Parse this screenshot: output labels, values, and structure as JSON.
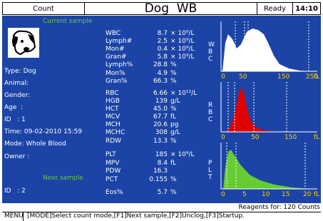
{
  "header": {
    "mode": "Count",
    "title": "Dog  WB",
    "status": "Ready",
    "time": "14:10"
  },
  "current_sample": {
    "heading": "Current sample",
    "fields": [
      "Type: Dog",
      "Animal:",
      "Gender:",
      "Age  :",
      "ID   : 1",
      "Time: 09-02-2010 15:59",
      "Mode: Whole Blood",
      "Owner :"
    ]
  },
  "next_sample": {
    "heading": "Next sample",
    "id": "ID   : 2"
  },
  "parameters": [
    {
      "name": "WBC",
      "value": "8.7",
      "unit": "× 10⁹/L"
    },
    {
      "name": "Lymph#",
      "value": "2.5",
      "unit": "× 10⁹/L"
    },
    {
      "name": "Mon#",
      "value": "0.4",
      "unit": "× 10⁹/L"
    },
    {
      "name": "Gran#",
      "value": "5.8",
      "unit": "× 10⁹/L"
    },
    {
      "name": "Lymph%",
      "value": "28.8",
      "unit": "%"
    },
    {
      "name": "Mon%",
      "value": "4.9",
      "unit": "%"
    },
    {
      "name": "Gran%",
      "value": "66.3",
      "unit": "%"
    },
    {
      "name": "RBC",
      "value": "6.66",
      "unit": "× 10¹²/L"
    },
    {
      "name": "HGB",
      "value": "139",
      "unit": "g/L"
    },
    {
      "name": "HCT",
      "value": "45.0",
      "unit": "%"
    },
    {
      "name": "MCV",
      "value": "67.7",
      "unit": "fL"
    },
    {
      "name": "MCH",
      "value": "20.6",
      "unit": "pg"
    },
    {
      "name": "MCHC",
      "value": "308",
      "unit": "g/L"
    },
    {
      "name": "RDW",
      "value": "13.3",
      "unit": "%"
    },
    {
      "name": "PLT",
      "value": "185",
      "unit": "× 10⁹/L"
    },
    {
      "name": "MPV",
      "value": "8.4",
      "unit": "fL"
    },
    {
      "name": "PDW",
      "value": "16.3"
    },
    {
      "name": "PCT",
      "value": "0.155",
      "unit": "%"
    },
    {
      "name": "Eos%",
      "value": "5.7",
      "unit": "%"
    }
  ],
  "histograms": [
    {
      "label": "WBC",
      "ticks": [
        "0",
        "50",
        "150",
        "250"
      ],
      "unit": "fL"
    },
    {
      "label": "RBC",
      "ticks": [
        "0",
        "50",
        "150"
      ],
      "unit": "fL"
    },
    {
      "label": "PLT",
      "ticks": [
        "0",
        "5",
        "10",
        "15",
        "20"
      ],
      "unit": "fL"
    }
  ],
  "footer": {
    "reagents": "Reagents for: 120 Counts",
    "menu_key": "MENU",
    "menu": "[MODE]Select count mode,[F1]Next sample,[F2]Unclog,[F3]Startup."
  }
}
